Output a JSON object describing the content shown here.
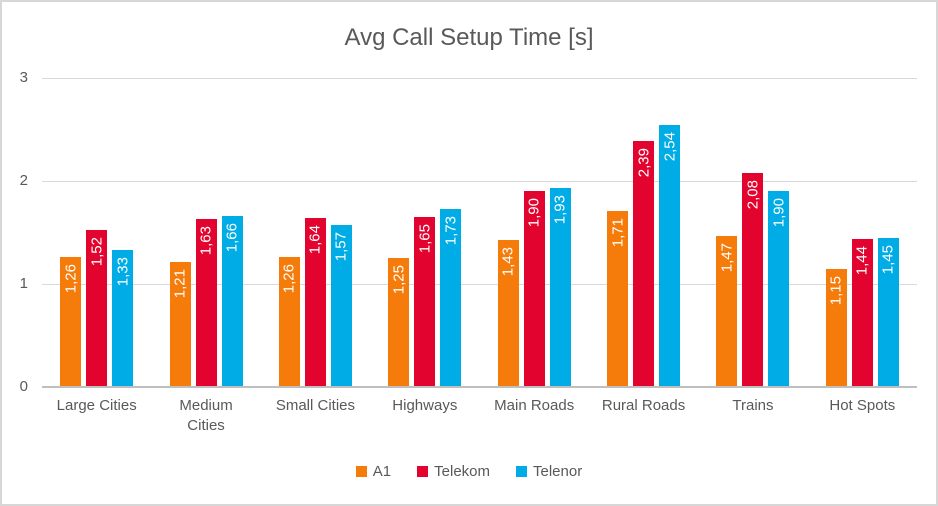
{
  "chart_data": {
    "type": "bar",
    "title": "Avg Call Setup Time [s]",
    "categories": [
      "Large Cities",
      "Medium Cities",
      "Small Cities",
      "Highways",
      "Main Roads",
      "Rural Roads",
      "Trains",
      "Hot Spots"
    ],
    "series": [
      {
        "name": "A1",
        "color": "#F57C0B",
        "values": [
          1.26,
          1.21,
          1.26,
          1.25,
          1.43,
          1.71,
          1.47,
          1.15
        ]
      },
      {
        "name": "Telekom",
        "color": "#E2042F",
        "values": [
          1.52,
          1.63,
          1.64,
          1.65,
          1.9,
          2.39,
          2.08,
          1.44
        ]
      },
      {
        "name": "Telenor",
        "color": "#00ACE6",
        "values": [
          1.33,
          1.66,
          1.57,
          1.73,
          1.93,
          2.54,
          1.9,
          1.45
        ]
      }
    ],
    "ylim": [
      0,
      3
    ],
    "yticks": [
      0,
      1,
      2,
      3
    ],
    "grid": true,
    "legend_position": "bottom",
    "decimal_separator": ",",
    "data_labels": "inside-end, rotated 90deg, white"
  },
  "palette": {
    "title_text": "#595959",
    "axis_text": "#595959",
    "gridline": "#D9D9D9",
    "axis_line": "#BFBFBF",
    "frame_border": "#D7D7D7",
    "background": "#FFFFFF",
    "bar_label_text": "#FFFFFF"
  }
}
